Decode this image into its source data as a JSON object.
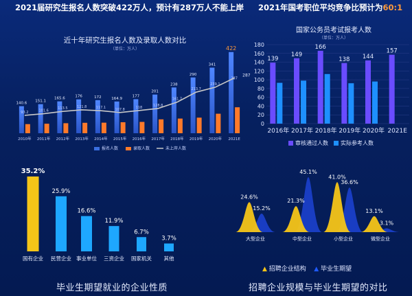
{
  "headline_left": {
    "before": "2021届研究生报名人数突破",
    "a": "422",
    "mid": "万人，预计有",
    "b": "287",
    "after": "万人不能上岸"
  },
  "headline_right": {
    "before": "2021年国考职位平均竞争比预计为",
    "ratio": "60:1"
  },
  "colors": {
    "blue": "#3a6fe0",
    "orange": "#ff7a2a",
    "line": "#c8c8c8",
    "purple": "#6a4cff",
    "cyan": "#1e90ff",
    "yellow": "#f5c518",
    "sky": "#1ea7ff",
    "navy": "#1a3fc8"
  },
  "chart_data": [
    {
      "type": "bar",
      "title": "近十年研究生报名人数及录取人数对比",
      "subtitle": "（单位：万人）",
      "categories": [
        "2010年",
        "2011年",
        "2012年",
        "2013年",
        "2014年",
        "2015年",
        "2016年",
        "2017年",
        "2018年",
        "2019年",
        "2020年",
        "2021E"
      ],
      "series": [
        {
          "name": "报名人数",
          "values": [
            140.6,
            151.1,
            165.6,
            176,
            172,
            164.9,
            177,
            201,
            238,
            290,
            341,
            422
          ]
        },
        {
          "name": "录取人数",
          "values": [
            47.4,
            49.5,
            52.1,
            54.3,
            54.9,
            57.2,
            58.9,
            72.2,
            76.3,
            81.1,
            101.5,
            135
          ]
        },
        {
          "name": "未上岸人数",
          "type": "line",
          "values": [
            93.2,
            101.6,
            113.5,
            121.8,
            117.1,
            107.8,
            118,
            128.8,
            161.7,
            213.7,
            239.1,
            287
          ]
        }
      ],
      "ylim": [
        0,
        450
      ]
    },
    {
      "type": "bar",
      "title": "国家公务员考试报考人数",
      "subtitle": "（单位：万人）",
      "categories": [
        "2016年",
        "2017年",
        "2018年",
        "2019年",
        "2020年",
        "2021E"
      ],
      "series": [
        {
          "name": "审核通过人数",
          "values": [
            139,
            149,
            166,
            138,
            144,
            157
          ]
        },
        {
          "name": "实际参考人数",
          "values": [
            93,
            98,
            113,
            92,
            96,
            null
          ]
        }
      ],
      "ylim": [
        0,
        180
      ],
      "yticks": [
        0,
        20,
        40,
        60,
        80,
        100,
        120,
        140,
        160,
        180
      ]
    },
    {
      "type": "bar",
      "title": "毕业生期望就业的企业性质",
      "categories": [
        "国有企业",
        "民营企业",
        "事业单位",
        "三资企业",
        "国家机关",
        "其他"
      ],
      "values": [
        35.2,
        25.9,
        16.6,
        11.9,
        6.7,
        3.7
      ],
      "labels": [
        "35.2%",
        "25.9%",
        "16.6%",
        "11.9%",
        "6.7%",
        "3.7%"
      ]
    },
    {
      "type": "area",
      "title": "招聘企业规模与毕业生期望的对比",
      "categories": [
        "大型企业",
        "中型企业",
        "小型企业",
        "微型企业"
      ],
      "series": [
        {
          "name": "招聘企业结构",
          "values": [
            24.6,
            21.3,
            41.0,
            13.1
          ],
          "labels": [
            "24.6%",
            "21.3%",
            "41.0%",
            "13.1%"
          ]
        },
        {
          "name": "毕业生期望",
          "values": [
            15.2,
            45.1,
            36.6,
            3.1
          ],
          "labels": [
            "15.2%",
            "45.1%",
            "36.6%",
            "3.1%"
          ]
        }
      ]
    }
  ]
}
